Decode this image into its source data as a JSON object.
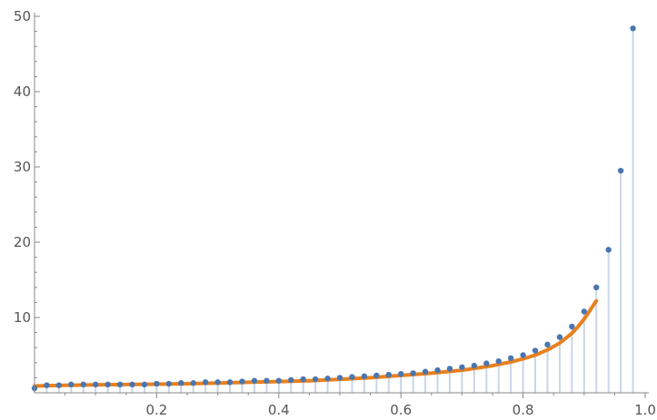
{
  "chart_data": {
    "type": "scatter",
    "title": "",
    "xlabel": "",
    "ylabel": "",
    "xlim": [
      0,
      1.0
    ],
    "ylim": [
      0,
      50
    ],
    "x_ticks": [
      0.2,
      0.4,
      0.6,
      0.8,
      1.0
    ],
    "x_tick_labels": [
      "0.2",
      "0.4",
      "0.6",
      "0.8",
      "1.0"
    ],
    "y_ticks": [
      10,
      20,
      30,
      40,
      50
    ],
    "y_tick_labels": [
      "10",
      "20",
      "30",
      "40",
      "50"
    ],
    "grid": false,
    "filling_to_axis": true,
    "colors": {
      "points": "#4a76b0",
      "stems": "#c9d6e6",
      "fit": "#e8801e"
    },
    "series": [
      {
        "kind": "points",
        "x": [
          0.0,
          0.02,
          0.04,
          0.06,
          0.08,
          0.1,
          0.12,
          0.14,
          0.16,
          0.18,
          0.2,
          0.22,
          0.24,
          0.26,
          0.28,
          0.3,
          0.32,
          0.34,
          0.36,
          0.38,
          0.4,
          0.42,
          0.44,
          0.46,
          0.48,
          0.5,
          0.52,
          0.54,
          0.56,
          0.58,
          0.6,
          0.62,
          0.64,
          0.66,
          0.68,
          0.7,
          0.72,
          0.74,
          0.76,
          0.78,
          0.8,
          0.82,
          0.84,
          0.86,
          0.88,
          0.9,
          0.92,
          0.94,
          0.96,
          0.98
        ],
        "y": [
          0.6,
          1.0,
          1.0,
          1.1,
          1.1,
          1.1,
          1.1,
          1.1,
          1.1,
          1.1,
          1.2,
          1.2,
          1.3,
          1.3,
          1.4,
          1.4,
          1.4,
          1.5,
          1.6,
          1.6,
          1.6,
          1.7,
          1.8,
          1.8,
          1.9,
          2.0,
          2.1,
          2.2,
          2.3,
          2.4,
          2.5,
          2.6,
          2.8,
          3.0,
          3.2,
          3.4,
          3.6,
          3.9,
          4.2,
          4.6,
          5.0,
          5.6,
          6.4,
          7.4,
          8.8,
          10.8,
          14.0,
          19.0,
          29.5,
          48.4
        ]
      },
      {
        "kind": "fit",
        "x": [
          0.0,
          0.05,
          0.1,
          0.15,
          0.2,
          0.25,
          0.3,
          0.35,
          0.4,
          0.45,
          0.5,
          0.55,
          0.6,
          0.65,
          0.7,
          0.75,
          0.78,
          0.8,
          0.82,
          0.84,
          0.86,
          0.88,
          0.89,
          0.9,
          0.91,
          0.92
        ],
        "y": [
          0.9,
          1.0,
          1.05,
          1.1,
          1.15,
          1.2,
          1.3,
          1.4,
          1.5,
          1.6,
          1.8,
          2.0,
          2.3,
          2.6,
          3.0,
          3.6,
          4.1,
          4.5,
          5.0,
          5.7,
          6.6,
          7.9,
          8.8,
          9.8,
          11.0,
          12.2
        ]
      }
    ]
  }
}
